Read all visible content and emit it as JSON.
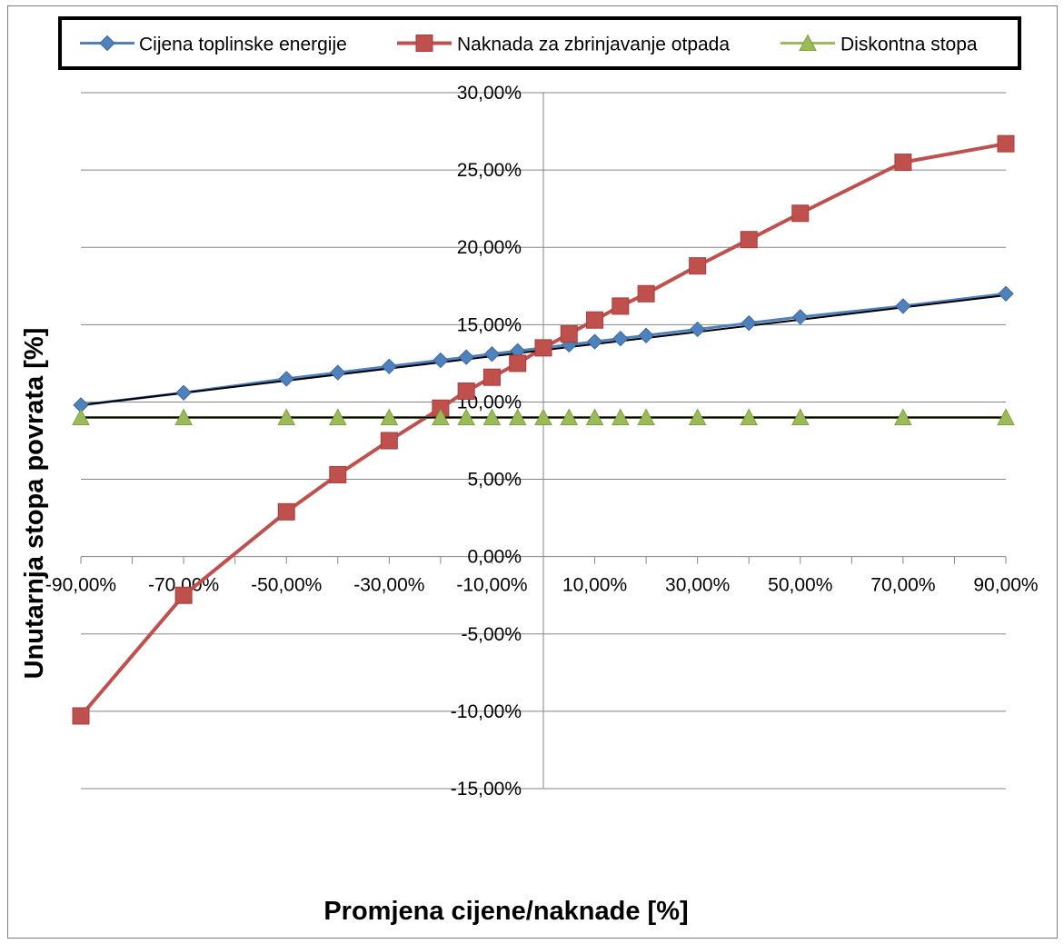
{
  "chart_data": {
    "type": "line",
    "title": "",
    "xlabel": "Promjena cijene/naknade [%]",
    "ylabel": "Unutarnja stopa povrata [%]",
    "xlim": [
      -90,
      90
    ],
    "ylim": [
      -15,
      30
    ],
    "x_ticks": [
      -90,
      -70,
      -50,
      -30,
      -10,
      10,
      30,
      50,
      70,
      90
    ],
    "x_tick_labels": [
      "-90,00%",
      "-70,00%",
      "-50,00%",
      "-30,00%",
      "-10,00%",
      "10,00%",
      "30,00%",
      "50,00%",
      "70,00%",
      "90,00%"
    ],
    "x_minor_ticks": [
      -80,
      -60,
      -40,
      -20,
      0,
      20,
      40,
      60,
      80
    ],
    "y_ticks": [
      30,
      25,
      20,
      15,
      10,
      5,
      0,
      -5,
      -10,
      -15
    ],
    "y_tick_labels": [
      "30,00%",
      "25,00%",
      "20,00%",
      "15,00%",
      "10,00%",
      "5,00%",
      "0,00%",
      "-5,00%",
      "-10,00%",
      "-15,00%"
    ],
    "grid": true,
    "legend_position": "top",
    "series": [
      {
        "name": "Cijena toplinske energije",
        "color": "#4F81BD",
        "marker": "diamond",
        "x": [
          -90,
          -70,
          -50,
          -40,
          -30,
          -20,
          -15,
          -10,
          -5,
          0,
          5,
          10,
          15,
          20,
          30,
          40,
          50,
          70,
          90
        ],
        "y": [
          9.8,
          10.6,
          11.5,
          11.9,
          12.3,
          12.7,
          12.9,
          13.1,
          13.3,
          13.5,
          13.7,
          13.9,
          14.1,
          14.3,
          14.7,
          15.1,
          15.5,
          16.2,
          17.0
        ]
      },
      {
        "name": "Naknada za zbrinjavanje otpada",
        "color": "#C0504D",
        "marker": "square",
        "x": [
          -90,
          -70,
          -50,
          -40,
          -30,
          -20,
          -15,
          -10,
          -5,
          0,
          5,
          10,
          15,
          20,
          30,
          40,
          50,
          70,
          90
        ],
        "y": [
          -10.3,
          -2.5,
          2.9,
          5.3,
          7.5,
          9.6,
          10.7,
          11.6,
          12.5,
          13.5,
          14.4,
          15.3,
          16.2,
          17.0,
          18.8,
          20.5,
          22.2,
          25.5,
          26.7
        ]
      },
      {
        "name": "Diskontna stopa",
        "color": "#9BBB59",
        "marker": "triangle",
        "x": [
          -90,
          -70,
          -50,
          -40,
          -30,
          -20,
          -15,
          -10,
          -5,
          0,
          5,
          10,
          15,
          20,
          30,
          40,
          50,
          70,
          90
        ],
        "y": [
          9,
          9,
          9,
          9,
          9,
          9,
          9,
          9,
          9,
          9,
          9,
          9,
          9,
          9,
          9,
          9,
          9,
          9,
          9
        ]
      }
    ],
    "trendlines": [
      {
        "series": "Cijena toplinske energije",
        "color": "#000000",
        "x": [
          -90,
          90
        ],
        "y": [
          9.8,
          16.9
        ]
      },
      {
        "series": "Diskontna stopa",
        "color": "#000000",
        "x": [
          -90,
          90
        ],
        "y": [
          9,
          9
        ]
      }
    ]
  }
}
